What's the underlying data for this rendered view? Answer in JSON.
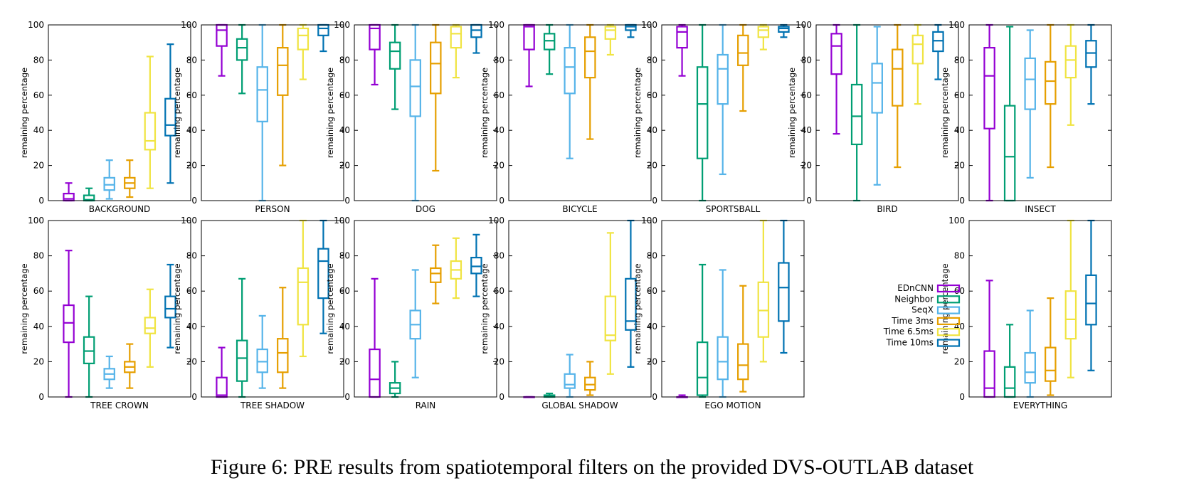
{
  "caption": "Figure 6: PRE results from spatiotemporal filters on the provided DVS-OUTLAB dataset",
  "chart_data": {
    "type": "box",
    "ylabel": "remaining percentage",
    "ylim": [
      0,
      100
    ],
    "yticks": [
      0,
      20,
      40,
      60,
      80,
      100
    ],
    "series": [
      {
        "name": "EDnCNN",
        "color": "#9400D3"
      },
      {
        "name": "Neighbor",
        "color": "#009E73"
      },
      {
        "name": "SeqX",
        "color": "#56B4E9"
      },
      {
        "name": "Time 3ms",
        "color": "#E69F00"
      },
      {
        "name": "Time 6.5ms",
        "color": "#F0E442"
      },
      {
        "name": "Time 10ms",
        "color": "#0072B2"
      }
    ],
    "panels": [
      {
        "label": "BACKGROUND",
        "boxes": [
          [
            0,
            0,
            1,
            4,
            10
          ],
          [
            0,
            0,
            0.5,
            3,
            7
          ],
          [
            1,
            6,
            9,
            13,
            23
          ],
          [
            2,
            7,
            10,
            13,
            23
          ],
          [
            7,
            29,
            34,
            50,
            82
          ],
          [
            10,
            37,
            43,
            58,
            89
          ]
        ]
      },
      {
        "label": "PERSON",
        "boxes": [
          [
            71,
            88,
            97,
            100,
            100
          ],
          [
            61,
            80,
            87,
            92,
            100
          ],
          [
            0,
            45,
            63,
            76,
            100
          ],
          [
            20,
            60,
            77,
            87,
            100
          ],
          [
            69,
            86,
            94,
            98,
            100
          ],
          [
            85,
            94,
            98,
            100,
            100
          ]
        ]
      },
      {
        "label": "DOG",
        "boxes": [
          [
            66,
            86,
            98,
            100,
            100
          ],
          [
            52,
            75,
            85,
            90,
            100
          ],
          [
            0,
            48,
            65,
            80,
            100
          ],
          [
            17,
            61,
            78,
            90,
            100
          ],
          [
            70,
            87,
            95,
            99,
            100
          ],
          [
            84,
            93,
            97,
            100,
            100
          ]
        ]
      },
      {
        "label": "BICYCLE",
        "boxes": [
          [
            65,
            86,
            99,
            100,
            100
          ],
          [
            72,
            86,
            91,
            95,
            100
          ],
          [
            24,
            61,
            76,
            87,
            100
          ],
          [
            35,
            70,
            85,
            93,
            100
          ],
          [
            83,
            92,
            97,
            99,
            100
          ],
          [
            93,
            97,
            99,
            100,
            100
          ]
        ]
      },
      {
        "label": "SPORTSBALL",
        "boxes": [
          [
            71,
            87,
            96,
            99,
            100
          ],
          [
            0,
            24,
            55,
            76,
            100
          ],
          [
            15,
            55,
            75,
            83,
            100
          ],
          [
            51,
            77,
            84,
            94,
            100
          ],
          [
            86,
            93,
            97,
            99,
            100
          ],
          [
            93,
            96,
            98,
            99,
            100
          ]
        ]
      },
      {
        "label": "BIRD",
        "boxes": [
          [
            38,
            72,
            88,
            95,
            100
          ],
          [
            0,
            32,
            48,
            66,
            100
          ],
          [
            9,
            50,
            67,
            78,
            99
          ],
          [
            19,
            54,
            75,
            86,
            100
          ],
          [
            55,
            78,
            89,
            94,
            100
          ],
          [
            69,
            85,
            91,
            96,
            100
          ]
        ]
      },
      {
        "label": "INSECT",
        "boxes": [
          [
            0,
            41,
            71,
            87,
            100
          ],
          [
            0,
            0,
            25,
            54,
            99
          ],
          [
            13,
            52,
            69,
            81,
            97
          ],
          [
            19,
            55,
            68,
            79,
            100
          ],
          [
            43,
            70,
            80,
            88,
            100
          ],
          [
            55,
            76,
            84,
            91,
            100
          ]
        ]
      },
      {
        "label": "TREE CROWN",
        "boxes": [
          [
            0,
            31,
            42,
            52,
            83
          ],
          [
            0,
            19,
            26,
            34,
            57
          ],
          [
            5,
            10,
            13,
            16,
            23
          ],
          [
            5,
            14,
            17,
            20,
            30
          ],
          [
            17,
            36,
            39,
            45,
            61
          ],
          [
            28,
            45,
            50,
            57,
            75
          ]
        ]
      },
      {
        "label": "TREE SHADOW",
        "boxes": [
          [
            0,
            0,
            1,
            11,
            28
          ],
          [
            0,
            9,
            22,
            32,
            67
          ],
          [
            5,
            14,
            20,
            27,
            46
          ],
          [
            5,
            14,
            25,
            33,
            62
          ],
          [
            23,
            41,
            65,
            73,
            100
          ],
          [
            36,
            56,
            77,
            84,
            100
          ]
        ]
      },
      {
        "label": "RAIN",
        "boxes": [
          [
            0,
            0,
            10,
            27,
            67
          ],
          [
            0,
            2,
            5,
            8,
            20
          ],
          [
            11,
            33,
            41,
            49,
            72
          ],
          [
            53,
            65,
            70,
            73,
            86
          ],
          [
            56,
            67,
            72,
            77,
            90
          ],
          [
            57,
            70,
            74,
            79,
            92
          ]
        ]
      },
      {
        "label": "GLOBAL SHADOW",
        "boxes": [
          [
            0,
            0,
            0,
            0,
            0
          ],
          [
            0,
            0,
            0.5,
            1,
            2
          ],
          [
            0,
            5,
            7,
            13,
            24
          ],
          [
            1,
            4,
            7,
            11,
            20
          ],
          [
            13,
            32,
            35,
            57,
            93
          ],
          [
            17,
            38,
            43,
            67,
            100
          ]
        ]
      },
      {
        "label": "EGO MOTION",
        "boxes": [
          [
            0,
            0,
            0,
            0,
            1
          ],
          [
            0,
            1,
            11,
            31,
            75
          ],
          [
            0,
            10,
            20,
            34,
            72
          ],
          [
            3,
            10,
            18,
            30,
            63
          ],
          [
            20,
            34,
            49,
            65,
            100
          ],
          [
            25,
            43,
            62,
            76,
            100
          ]
        ]
      },
      {
        "label": "EVERYTHING",
        "boxes": [
          [
            0,
            0,
            5,
            26,
            66
          ],
          [
            0,
            0,
            5,
            17,
            41
          ],
          [
            0,
            8,
            14,
            25,
            49
          ],
          [
            1,
            9,
            15,
            28,
            56
          ],
          [
            11,
            33,
            44,
            60,
            100
          ],
          [
            15,
            41,
            53,
            69,
            100
          ]
        ]
      }
    ]
  }
}
